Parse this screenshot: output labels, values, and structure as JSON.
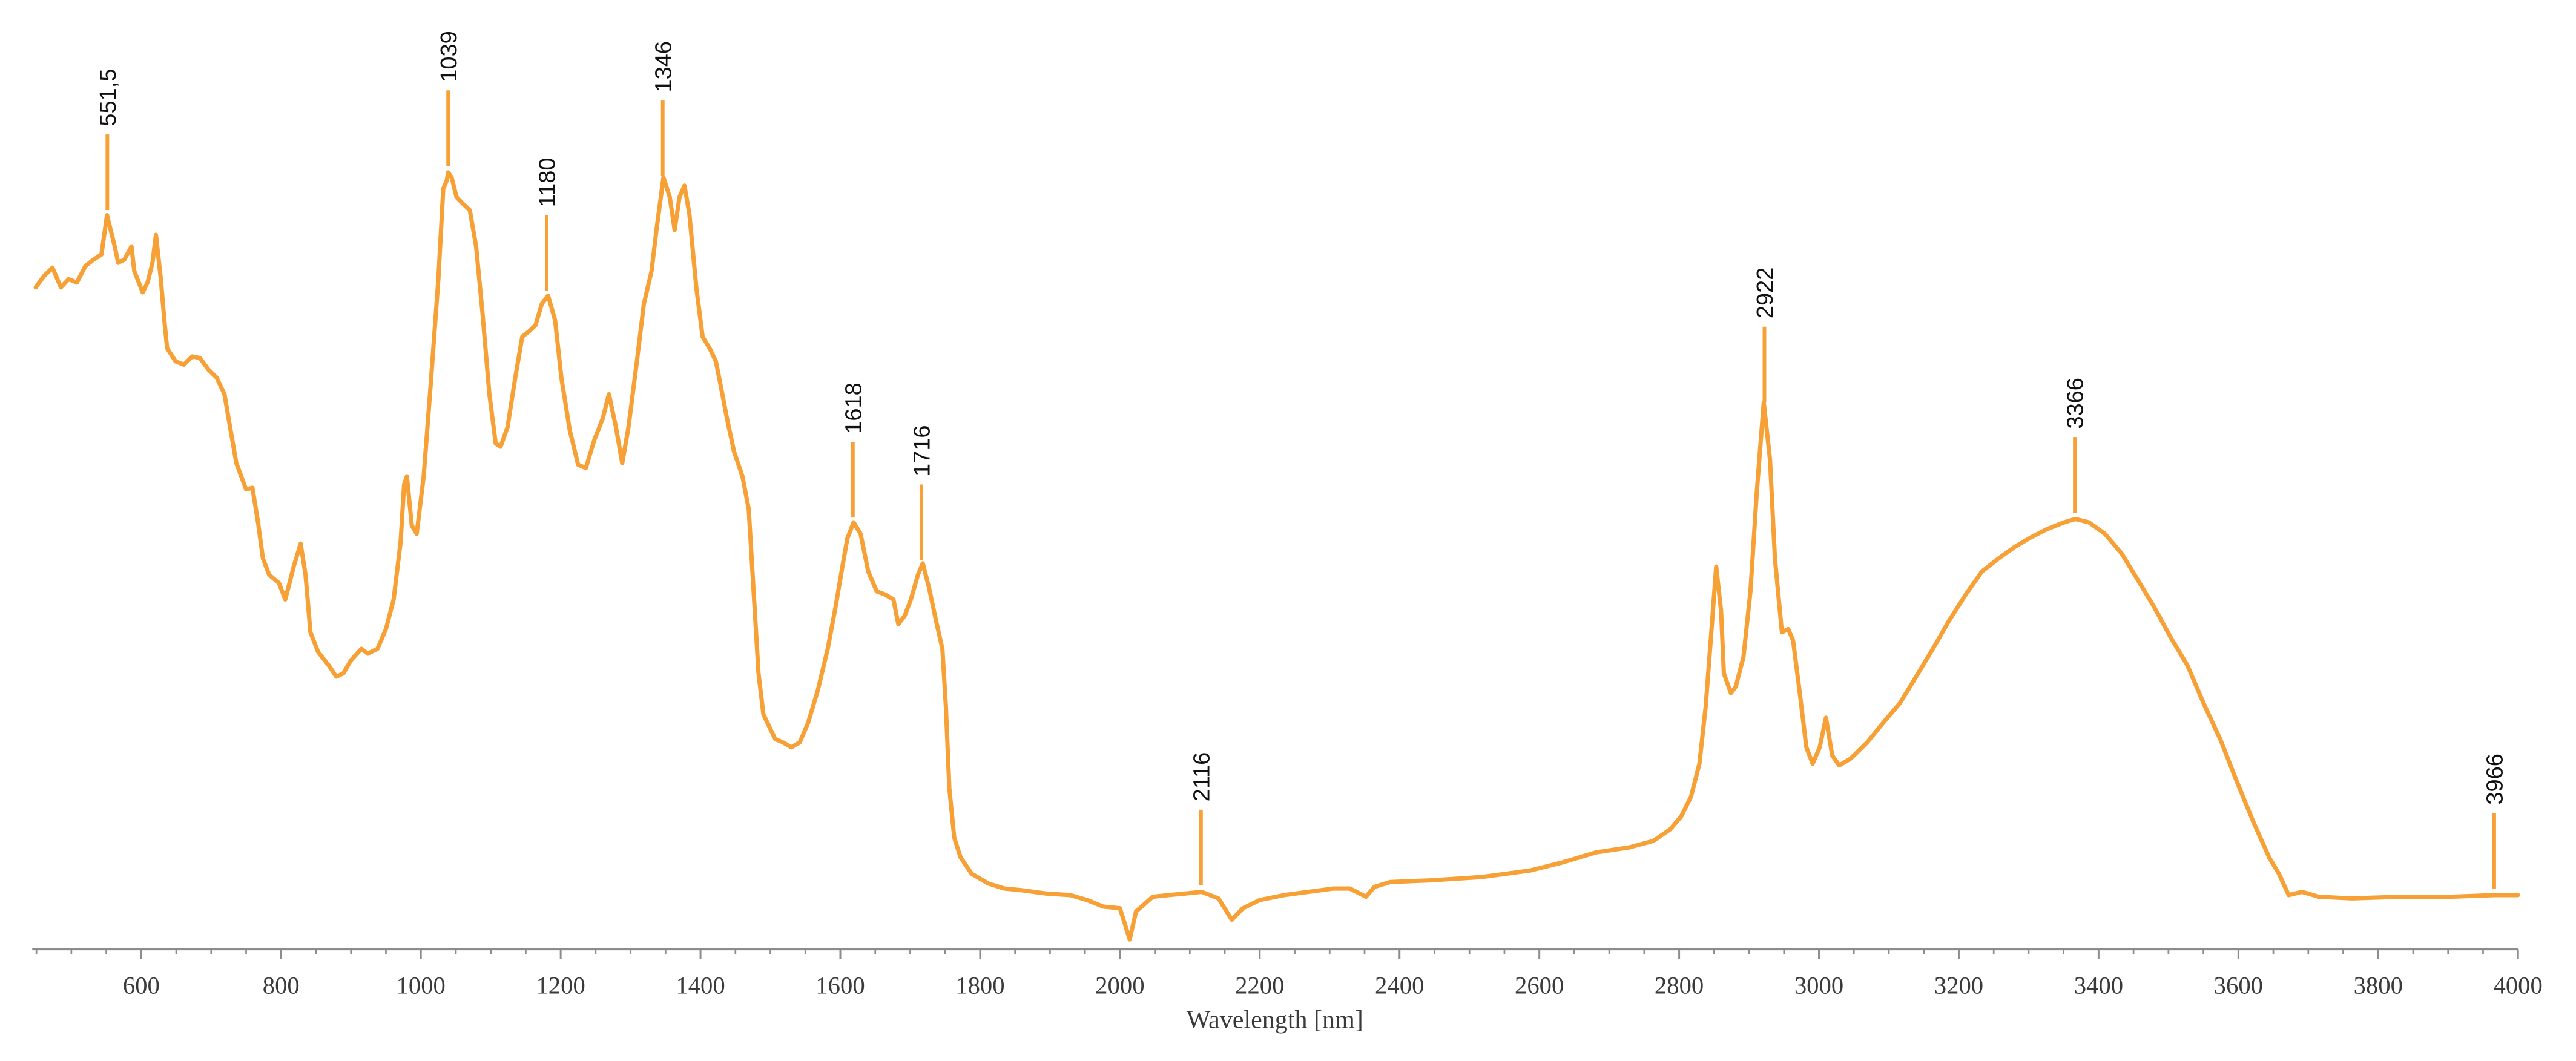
{
  "chart_data": {
    "type": "line",
    "title": "",
    "xlabel": "Wavelength [nm]",
    "ylabel": "",
    "xlim": [
      444,
      4000
    ],
    "ylim": [
      0,
      1
    ],
    "grid": false,
    "legend": "none",
    "color": "#F7A035",
    "xticks": [
      600,
      800,
      1000,
      1200,
      1400,
      1600,
      1800,
      2000,
      2200,
      2400,
      2600,
      2800,
      3000,
      3200,
      3400,
      3600,
      3800,
      4000
    ],
    "minor_tick_step": 50,
    "series": [
      {
        "points": [
          [
            449,
            0.806
          ],
          [
            461,
            0.82
          ],
          [
            473,
            0.83
          ],
          [
            485,
            0.806
          ],
          [
            496,
            0.816
          ],
          [
            508,
            0.812
          ],
          [
            520,
            0.832
          ],
          [
            532,
            0.84
          ],
          [
            543,
            0.846
          ],
          [
            547,
            0.87
          ],
          [
            551,
            0.894
          ],
          [
            562,
            0.856
          ],
          [
            567,
            0.836
          ],
          [
            576,
            0.84
          ],
          [
            586,
            0.856
          ],
          [
            590,
            0.826
          ],
          [
            602,
            0.8
          ],
          [
            609,
            0.812
          ],
          [
            616,
            0.836
          ],
          [
            621,
            0.87
          ],
          [
            628,
            0.816
          ],
          [
            633,
            0.766
          ],
          [
            637,
            0.732
          ],
          [
            649,
            0.716
          ],
          [
            661,
            0.712
          ],
          [
            673,
            0.722
          ],
          [
            684,
            0.72
          ],
          [
            696,
            0.706
          ],
          [
            708,
            0.696
          ],
          [
            719,
            0.676
          ],
          [
            727,
            0.636
          ],
          [
            736,
            0.592
          ],
          [
            750,
            0.56
          ],
          [
            759,
            0.562
          ],
          [
            767,
            0.52
          ],
          [
            774,
            0.476
          ],
          [
            783,
            0.456
          ],
          [
            797,
            0.446
          ],
          [
            806,
            0.426
          ],
          [
            818,
            0.466
          ],
          [
            828,
            0.494
          ],
          [
            835,
            0.456
          ],
          [
            842,
            0.386
          ],
          [
            853,
            0.362
          ],
          [
            868,
            0.346
          ],
          [
            879,
            0.332
          ],
          [
            889,
            0.336
          ],
          [
            900,
            0.352
          ],
          [
            915,
            0.366
          ],
          [
            924,
            0.36
          ],
          [
            938,
            0.366
          ],
          [
            950,
            0.39
          ],
          [
            961,
            0.426
          ],
          [
            971,
            0.496
          ],
          [
            976,
            0.566
          ],
          [
            980,
            0.576
          ],
          [
            987,
            0.516
          ],
          [
            994,
            0.506
          ],
          [
            1004,
            0.576
          ],
          [
            1013,
            0.676
          ],
          [
            1025,
            0.816
          ],
          [
            1032,
            0.926
          ],
          [
            1037,
            0.936
          ],
          [
            1039,
            0.946
          ],
          [
            1044,
            0.94
          ],
          [
            1051,
            0.916
          ],
          [
            1060,
            0.908
          ],
          [
            1070,
            0.9
          ],
          [
            1079,
            0.856
          ],
          [
            1088,
            0.776
          ],
          [
            1098,
            0.676
          ],
          [
            1107,
            0.616
          ],
          [
            1114,
            0.612
          ],
          [
            1124,
            0.636
          ],
          [
            1135,
            0.696
          ],
          [
            1145,
            0.746
          ],
          [
            1154,
            0.752
          ],
          [
            1164,
            0.76
          ],
          [
            1173,
            0.786
          ],
          [
            1182,
            0.796
          ],
          [
            1192,
            0.766
          ],
          [
            1201,
            0.696
          ],
          [
            1213,
            0.632
          ],
          [
            1225,
            0.59
          ],
          [
            1236,
            0.586
          ],
          [
            1248,
            0.62
          ],
          [
            1260,
            0.646
          ],
          [
            1269,
            0.676
          ],
          [
            1279,
            0.636
          ],
          [
            1288,
            0.592
          ],
          [
            1297,
            0.636
          ],
          [
            1309,
            0.716
          ],
          [
            1319,
            0.786
          ],
          [
            1330,
            0.826
          ],
          [
            1337,
            0.876
          ],
          [
            1347,
            0.94
          ],
          [
            1356,
            0.916
          ],
          [
            1363,
            0.876
          ],
          [
            1370,
            0.916
          ],
          [
            1377,
            0.93
          ],
          [
            1384,
            0.896
          ],
          [
            1394,
            0.806
          ],
          [
            1403,
            0.746
          ],
          [
            1413,
            0.732
          ],
          [
            1422,
            0.716
          ],
          [
            1429,
            0.686
          ],
          [
            1438,
            0.646
          ],
          [
            1448,
            0.606
          ],
          [
            1460,
            0.576
          ],
          [
            1469,
            0.536
          ],
          [
            1476,
            0.436
          ],
          [
            1483,
            0.336
          ],
          [
            1490,
            0.286
          ],
          [
            1499,
            0.27
          ],
          [
            1507,
            0.256
          ],
          [
            1518,
            0.252
          ],
          [
            1530,
            0.246
          ],
          [
            1542,
            0.252
          ],
          [
            1554,
            0.276
          ],
          [
            1568,
            0.316
          ],
          [
            1582,
            0.366
          ],
          [
            1593,
            0.416
          ],
          [
            1603,
            0.466
          ],
          [
            1610,
            0.5
          ],
          [
            1619,
            0.52
          ],
          [
            1629,
            0.506
          ],
          [
            1640,
            0.46
          ],
          [
            1652,
            0.436
          ],
          [
            1664,
            0.432
          ],
          [
            1676,
            0.426
          ],
          [
            1683,
            0.396
          ],
          [
            1692,
            0.406
          ],
          [
            1701,
            0.426
          ],
          [
            1711,
            0.456
          ],
          [
            1718,
            0.47
          ],
          [
            1727,
            0.44
          ],
          [
            1737,
            0.4
          ],
          [
            1746,
            0.366
          ],
          [
            1751,
            0.296
          ],
          [
            1756,
            0.196
          ],
          [
            1763,
            0.136
          ],
          [
            1772,
            0.112
          ],
          [
            1788,
            0.092
          ],
          [
            1812,
            0.08
          ],
          [
            1835,
            0.074
          ],
          [
            1859,
            0.072
          ],
          [
            1894,
            0.068
          ],
          [
            1929,
            0.066
          ],
          [
            1953,
            0.06
          ],
          [
            1976,
            0.052
          ],
          [
            2000,
            0.05
          ],
          [
            2014,
            0.012
          ],
          [
            2023,
            0.046
          ],
          [
            2047,
            0.064
          ],
          [
            2070,
            0.066
          ],
          [
            2094,
            0.068
          ],
          [
            2117,
            0.07
          ],
          [
            2141,
            0.062
          ],
          [
            2160,
            0.036
          ],
          [
            2176,
            0.05
          ],
          [
            2200,
            0.06
          ],
          [
            2235,
            0.066
          ],
          [
            2270,
            0.07
          ],
          [
            2305,
            0.074
          ],
          [
            2329,
            0.074
          ],
          [
            2352,
            0.064
          ],
          [
            2364,
            0.076
          ],
          [
            2387,
            0.082
          ],
          [
            2446,
            0.084
          ],
          [
            2517,
            0.088
          ],
          [
            2587,
            0.096
          ],
          [
            2634,
            0.106
          ],
          [
            2681,
            0.118
          ],
          [
            2728,
            0.124
          ],
          [
            2763,
            0.132
          ],
          [
            2787,
            0.146
          ],
          [
            2803,
            0.162
          ],
          [
            2817,
            0.186
          ],
          [
            2829,
            0.226
          ],
          [
            2838,
            0.296
          ],
          [
            2846,
            0.386
          ],
          [
            2853,
            0.466
          ],
          [
            2860,
            0.412
          ],
          [
            2864,
            0.336
          ],
          [
            2874,
            0.312
          ],
          [
            2881,
            0.32
          ],
          [
            2892,
            0.356
          ],
          [
            2902,
            0.436
          ],
          [
            2911,
            0.556
          ],
          [
            2921,
            0.666
          ],
          [
            2930,
            0.596
          ],
          [
            2937,
            0.476
          ],
          [
            2947,
            0.386
          ],
          [
            2956,
            0.39
          ],
          [
            2963,
            0.376
          ],
          [
            2972,
            0.316
          ],
          [
            2982,
            0.246
          ],
          [
            2991,
            0.226
          ],
          [
            3001,
            0.246
          ],
          [
            3010,
            0.282
          ],
          [
            3019,
            0.236
          ],
          [
            3029,
            0.224
          ],
          [
            3045,
            0.232
          ],
          [
            3069,
            0.252
          ],
          [
            3092,
            0.276
          ],
          [
            3116,
            0.3
          ],
          [
            3139,
            0.332
          ],
          [
            3163,
            0.366
          ],
          [
            3186,
            0.4
          ],
          [
            3210,
            0.432
          ],
          [
            3233,
            0.46
          ],
          [
            3257,
            0.476
          ],
          [
            3280,
            0.49
          ],
          [
            3304,
            0.502
          ],
          [
            3327,
            0.512
          ],
          [
            3351,
            0.52
          ],
          [
            3367,
            0.524
          ],
          [
            3386,
            0.52
          ],
          [
            3409,
            0.506
          ],
          [
            3433,
            0.482
          ],
          [
            3456,
            0.45
          ],
          [
            3480,
            0.416
          ],
          [
            3503,
            0.38
          ],
          [
            3527,
            0.346
          ],
          [
            3550,
            0.3
          ],
          [
            3574,
            0.256
          ],
          [
            3597,
            0.206
          ],
          [
            3621,
            0.156
          ],
          [
            3644,
            0.112
          ],
          [
            3658,
            0.092
          ],
          [
            3672,
            0.066
          ],
          [
            3691,
            0.07
          ],
          [
            3715,
            0.064
          ],
          [
            3762,
            0.062
          ],
          [
            3832,
            0.064
          ],
          [
            3903,
            0.064
          ],
          [
            3966,
            0.066
          ],
          [
            4000,
            0.066
          ]
        ]
      }
    ],
    "annotations": [
      {
        "x": 551.5,
        "label": "551,5"
      },
      {
        "x": 1039,
        "label": "1039"
      },
      {
        "x": 1180,
        "label": "1180"
      },
      {
        "x": 1346,
        "label": "1346"
      },
      {
        "x": 1618,
        "label": "1618"
      },
      {
        "x": 1716,
        "label": "1716"
      },
      {
        "x": 2116,
        "label": "2116"
      },
      {
        "x": 2922,
        "label": "2922"
      },
      {
        "x": 3366,
        "label": "3366"
      },
      {
        "x": 3966,
        "label": "3966"
      }
    ]
  }
}
